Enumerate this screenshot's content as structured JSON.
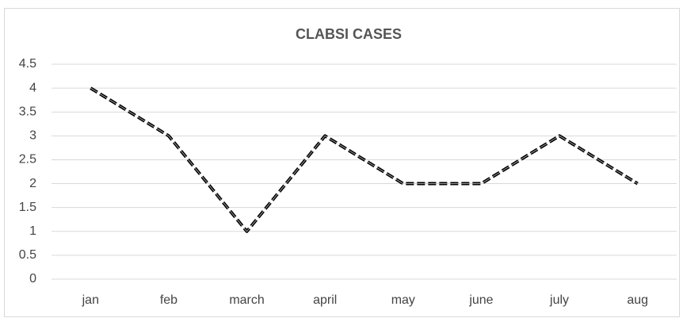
{
  "chart_data": {
    "type": "line",
    "title": "CLABSI CASES",
    "categories": [
      "jan",
      "feb",
      "march",
      "april",
      "may",
      "june",
      "july",
      "aug"
    ],
    "series": [
      {
        "name": "CLABSI CASES",
        "color": "#000000",
        "values": [
          4,
          3,
          1,
          3,
          2,
          2,
          3,
          2
        ]
      }
    ],
    "ylim": [
      0,
      4.5
    ],
    "yticks": [
      0,
      0.5,
      1,
      1.5,
      2,
      2.5,
      3,
      3.5,
      4,
      4.5
    ],
    "grid": true
  }
}
